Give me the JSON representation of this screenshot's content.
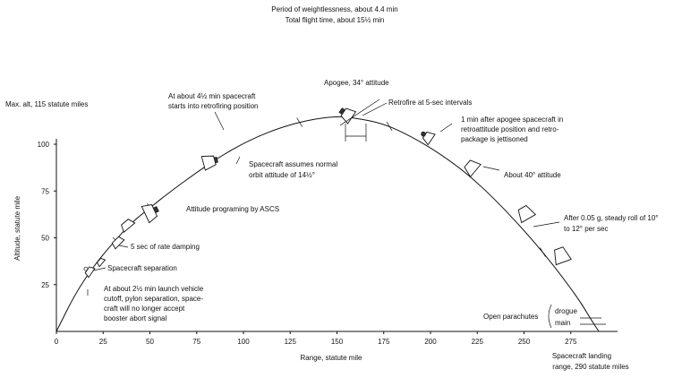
{
  "header": {
    "line1": "Period of weightlessness, about 4.4 min",
    "line2": "Total flight time, about 15½ min"
  },
  "axes": {
    "max_alt_label": "Max. alt, 115 statute miles",
    "y_label": "Altitude, statute mile",
    "x_label": "Range, statute mile",
    "landing_label_1": "Spacecraft landing",
    "landing_label_2": "range, 290 statute miles"
  },
  "chart_data": {
    "type": "line",
    "title": "",
    "xlabel": "Range, statute mile",
    "ylabel": "Altitude, statute mile",
    "xlim": [
      0,
      300
    ],
    "ylim": [
      0,
      125
    ],
    "x_ticks": [
      0,
      25,
      50,
      75,
      100,
      125,
      150,
      175,
      200,
      225,
      250,
      275
    ],
    "y_ticks": [
      25,
      50,
      75,
      100
    ],
    "x_tick_labels": [
      "0",
      "25",
      "50",
      "75",
      "100",
      "125",
      "150",
      "175",
      "200",
      "225",
      "250",
      "275"
    ],
    "y_tick_labels": [
      "25",
      "50",
      "75",
      "100"
    ],
    "series": [
      {
        "values_x": [
          0,
          10,
          20,
          30,
          40,
          50,
          60,
          75,
          90,
          105,
          120,
          135,
          150,
          160,
          175,
          190,
          205,
          220,
          235,
          250,
          262,
          272,
          280,
          286,
          290
        ],
        "values_y": [
          0,
          20,
          35,
          47,
          58,
          66,
          74,
          85,
          95,
          103,
          109,
          113,
          115,
          114,
          111,
          104,
          95,
          84,
          70,
          54,
          40,
          27,
          16,
          6,
          0
        ]
      }
    ]
  },
  "annotations": {
    "apogee": "Apogee, 34° attitude",
    "retrofire": "Retrofire at 5-sec intervals",
    "retrofire_position_1": "At about 4½ min spacecraft",
    "retrofire_position_2": "starts into retrofiring position",
    "retropackage_1": "1 min after apogee spacecraft in",
    "retropackage_2": "retroattitude position and retro-",
    "retropackage_3": "package is jettisoned",
    "normal_orbit_1": "Spacecraft assumes normal",
    "normal_orbit_2": "orbit attitude of 14½°",
    "about_40": "About 40° attitude",
    "asco": "Attitude programing by ASCS",
    "rate_damping": "5 sec of rate damping",
    "separation": "Spacecraft separation",
    "launch_cutoff_1": "At about 2½ min launch vehicle",
    "launch_cutoff_2": "cutoff, pylon separation, space-",
    "launch_cutoff_3": "craft will no longer accept",
    "launch_cutoff_4": "booster abort signal",
    "roll_1": "After 0.05 g, steady roll of 10°",
    "roll_2": "to 12° per sec",
    "open_parachutes": "Open parachutes",
    "drogue": "drogue",
    "main": "main"
  }
}
